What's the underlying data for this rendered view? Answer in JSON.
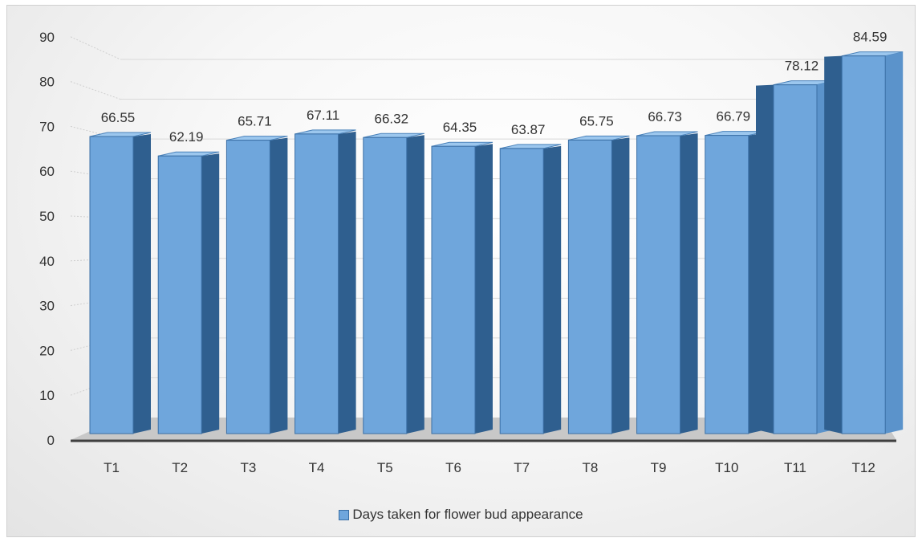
{
  "chart_data": {
    "type": "bar",
    "categories": [
      "T1",
      "T2",
      "T3",
      "T4",
      "T5",
      "T6",
      "T7",
      "T8",
      "T9",
      "T10",
      "T11",
      "T12"
    ],
    "series": [
      {
        "name": "Days taken for flower bud appearance",
        "values": [
          66.55,
          62.19,
          65.71,
          67.11,
          66.32,
          64.35,
          63.87,
          65.75,
          66.73,
          66.79,
          78.12,
          84.59
        ]
      }
    ],
    "title": "",
    "xlabel": "",
    "ylabel": "",
    "ylim": [
      0,
      90
    ],
    "yticks": [
      "0",
      "10",
      "20",
      "30",
      "40",
      "50",
      "60",
      "70",
      "80",
      "90"
    ],
    "data_labels": [
      "66.55",
      "62.19",
      "65.71",
      "67.11",
      "66.32",
      "64.35",
      "63.87",
      "65.75",
      "66.73",
      "66.79",
      "78.12",
      "84.59"
    ],
    "grid": true,
    "legend_position": "bottom",
    "colors": {
      "bar_front": "#6fa6dc",
      "bar_side": "#2f5f8f",
      "bar_top": "#9cc7ee"
    }
  }
}
